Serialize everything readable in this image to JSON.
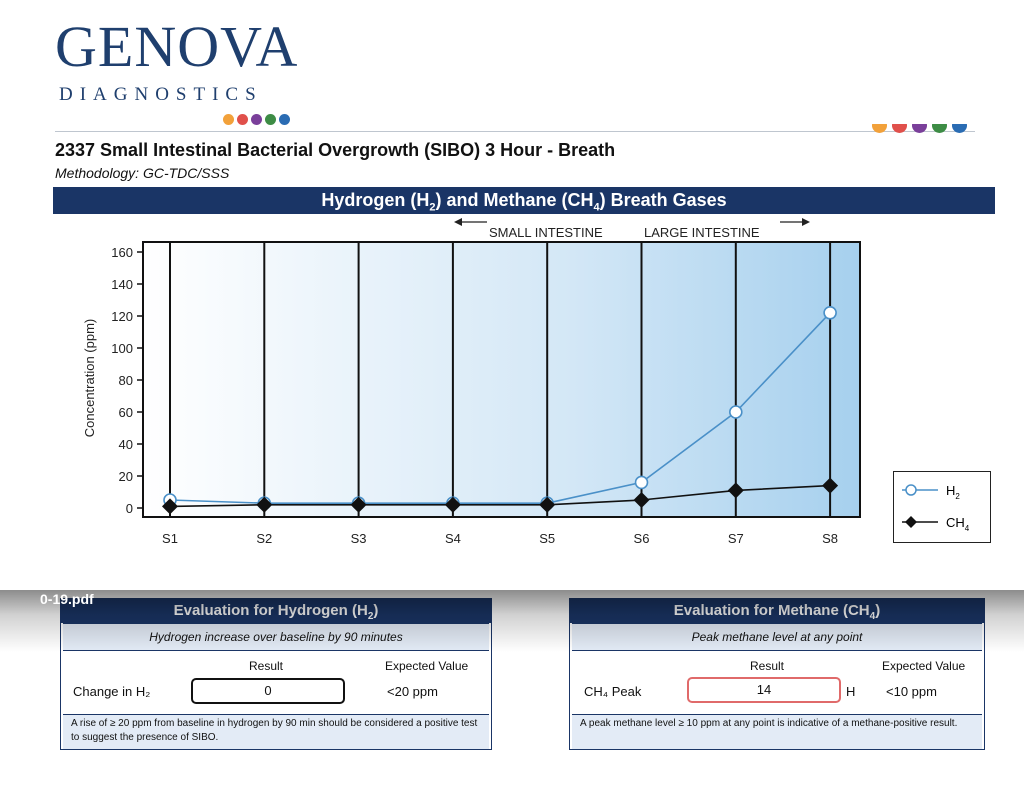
{
  "logo": {
    "word": "GENOVA",
    "sub": "DIAGNOSTICS",
    "dot_colors": [
      "#f2a13a",
      "#e0504b",
      "#7a3f9a",
      "#3d8c45",
      "#2a6cb3"
    ]
  },
  "header": {
    "title": "2337 Small Intestinal Bacterial Overgrowth (SIBO) 3 Hour - Breath",
    "methodology": "Methodology: GC-TDC/SSS"
  },
  "banner": {
    "part1": "Hydrogen (H",
    "sub1": "2",
    "part2": ") and Methane (CH",
    "sub2": "4",
    "part3": ") Breath Gases"
  },
  "regions": {
    "small": "SMALL INTESTINE",
    "large": "LARGE INTESTINE"
  },
  "chart_data": {
    "type": "line",
    "categories": [
      "S1",
      "S2",
      "S3",
      "S4",
      "S5",
      "S6",
      "S7",
      "S8"
    ],
    "ylabel": "Concentration (ppm)",
    "ylim": [
      0,
      160
    ],
    "yticks": [
      0,
      20,
      40,
      60,
      80,
      100,
      120,
      140,
      160
    ],
    "series": [
      {
        "name": "H2",
        "values": [
          5,
          3,
          3,
          3,
          3,
          16,
          60,
          122
        ],
        "color": "#4a90c8",
        "marker": "circle"
      },
      {
        "name": "CH4",
        "values": [
          1,
          2,
          2,
          2,
          2,
          5,
          11,
          14
        ],
        "color": "#111111",
        "marker": "diamond"
      }
    ],
    "legend": [
      "H2",
      "CH4"
    ],
    "legend_position": "right"
  },
  "legend": {
    "h2_text": "H",
    "h2_sub": "2",
    "ch4_text": "CH",
    "ch4_sub": "4"
  },
  "hydrogen_panel": {
    "title": "Evaluation for Hydrogen (H",
    "title_sub": "2",
    "title_end": ")",
    "subtitle": "Hydrogen increase over baseline by 90 minutes",
    "result_header": "Result",
    "expected_header": "Expected Value",
    "row_label": "Change in H₂",
    "result": "0",
    "expected": "<20 ppm",
    "note": "A rise of ≥ 20 ppm from baseline in hydrogen by 90 min should be considered a positive test to suggest the presence of SIBO."
  },
  "methane_panel": {
    "title": "Evaluation for Methane (CH",
    "title_sub": "4",
    "title_end": ")",
    "subtitle": "Peak methane level at any point",
    "result_header": "Result",
    "expected_header": "Expected Value",
    "row_label": "CH₄ Peak",
    "result": "14",
    "flag": "H",
    "expected": "<10 ppm",
    "note": "A peak methane level ≥ 10 ppm at any point is indicative of a methane-positive result."
  },
  "pdf_overlay": {
    "filename": "0-19.pdf"
  }
}
